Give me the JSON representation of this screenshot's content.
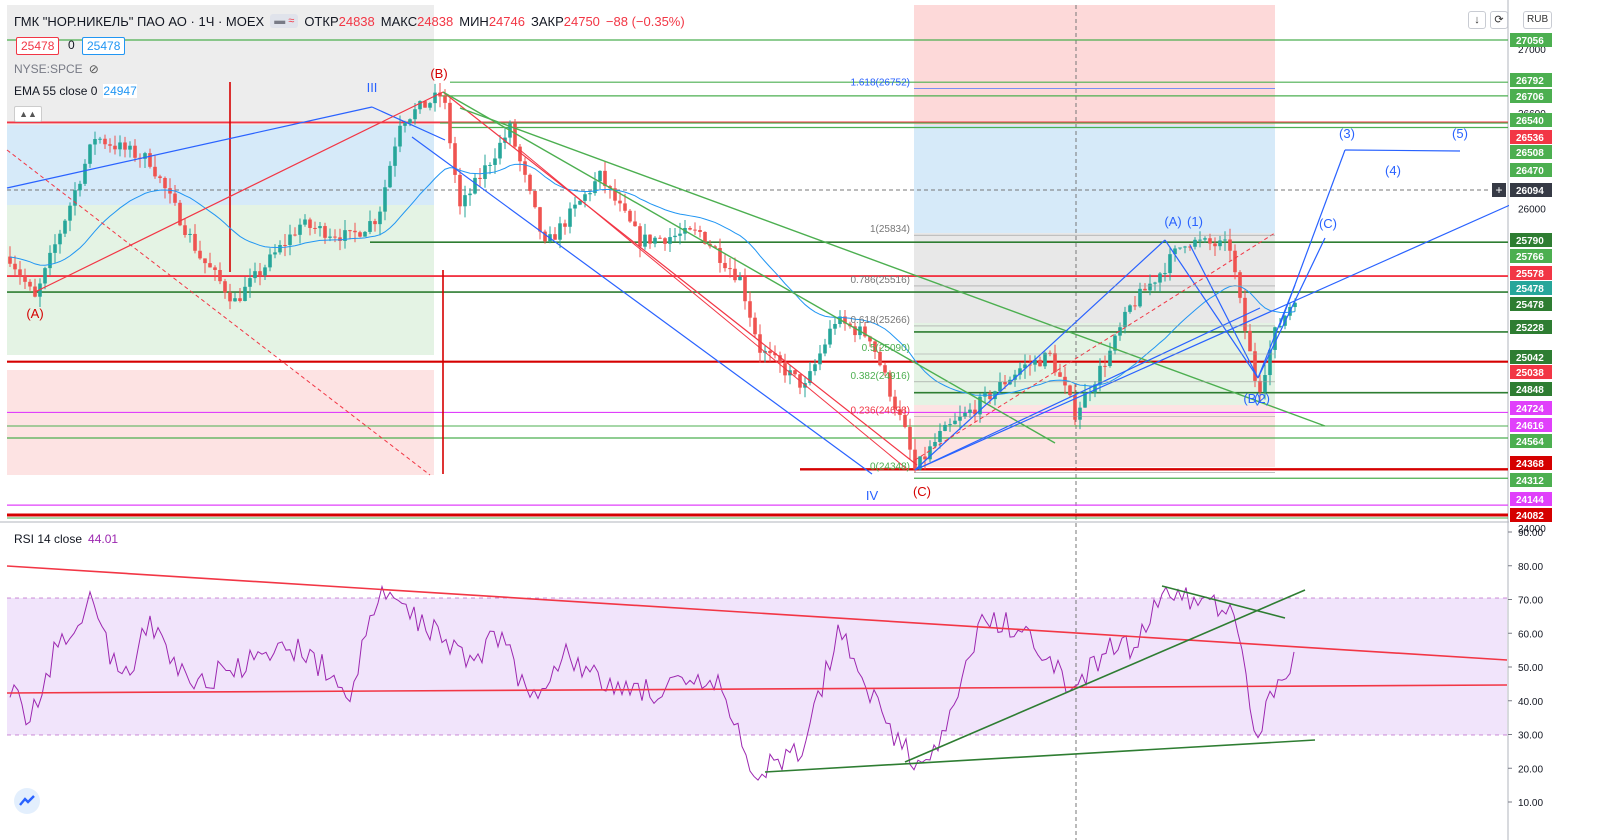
{
  "header": {
    "title": "ГМК \"НОР.НИКЕЛЬ\" ПАО АО · 1Ч · MOEX",
    "open_label": "ОТКР",
    "open": "24838",
    "high_label": "МАКС",
    "high": "24838",
    "low_label": "МИН",
    "low": "24746",
    "close_label": "ЗАКР",
    "close": "24750",
    "change": "−88 (−0.35%)"
  },
  "trade": {
    "sell": "25478",
    "spread": "0",
    "buy": "25478"
  },
  "compare_symbol": "NYSE:SPCE",
  "ema": {
    "label": "EMA 55 close 0",
    "value": "24947"
  },
  "rsi": {
    "label": "RSI 14 close",
    "value": "44.01"
  },
  "currency": "RUB",
  "colors": {
    "up": "#26a69a",
    "down": "#ef5350",
    "ema": "#2196f3",
    "rsi": "#9c27b0",
    "green_line": "#4caf50",
    "red_line": "#f23645",
    "blue_line": "#2962ff"
  },
  "icons": [
    "eye-off-icon",
    "arrow-down-icon",
    "refresh-icon",
    "crosshair-plus-icon",
    "tradingview-logo-icon"
  ],
  "chart_data": {
    "type": "candlestick",
    "timeframe": "1H",
    "y_ticks": [
      "27000",
      "26600",
      "26000",
      "24000"
    ],
    "price_badges": [
      {
        "value": "27056",
        "color": "#4caf50"
      },
      {
        "value": "26792",
        "color": "#4caf50"
      },
      {
        "value": "26706",
        "color": "#4caf50"
      },
      {
        "value": "26540",
        "color": "#4caf50"
      },
      {
        "value": "26536",
        "color": "#f23645"
      },
      {
        "value": "26508",
        "color": "#4caf50"
      },
      {
        "value": "26470",
        "color": "#4caf50"
      },
      {
        "value": "26094",
        "color": "#363a45"
      },
      {
        "value": "25790",
        "color": "#2e7d32"
      },
      {
        "value": "25766",
        "color": "#4caf50"
      },
      {
        "value": "25578",
        "color": "#f23645"
      },
      {
        "value": "25478",
        "color": "#26a69a"
      },
      {
        "value": "25478",
        "color": "#2e7d32"
      },
      {
        "value": "25228",
        "color": "#2e7d32"
      },
      {
        "value": "25042",
        "color": "#2e7d32"
      },
      {
        "value": "25038",
        "color": "#f23645"
      },
      {
        "value": "24848",
        "color": "#2e7d32"
      },
      {
        "value": "24724",
        "color": "#e040fb"
      },
      {
        "value": "24616",
        "color": "#e040fb"
      },
      {
        "value": "24564",
        "color": "#4caf50"
      },
      {
        "value": "24368",
        "color": "#d50000"
      },
      {
        "value": "24312",
        "color": "#4caf50"
      },
      {
        "value": "24144",
        "color": "#e040fb"
      },
      {
        "value": "24082",
        "color": "#d50000"
      }
    ],
    "rsi_ticks": [
      "90.00",
      "80.00",
      "70.00",
      "60.00",
      "50.00",
      "40.00",
      "30.00",
      "20.00",
      "10.00"
    ],
    "fib_left": [
      {
        "label": "1.618(26752)",
        "price": 26752
      },
      {
        "label": "1(25834)",
        "price": 25834
      },
      {
        "label": "0.786(25516)",
        "price": 25516
      },
      {
        "label": "0.618(25266)",
        "price": 25266
      },
      {
        "label": "0.5(25090)",
        "price": 25090
      },
      {
        "label": "0.382(24916)",
        "price": 24916
      },
      {
        "label": "0.236(24698)",
        "price": 24698
      },
      {
        "label": "0(24348)",
        "price": 24348
      }
    ],
    "wave_labels": [
      "III",
      "(B)",
      "(A)",
      "IV",
      "(C)",
      "(A)",
      "(1)",
      "(B)",
      "(2)",
      "(C)",
      "(3)",
      "(4)",
      "(5)"
    ]
  }
}
